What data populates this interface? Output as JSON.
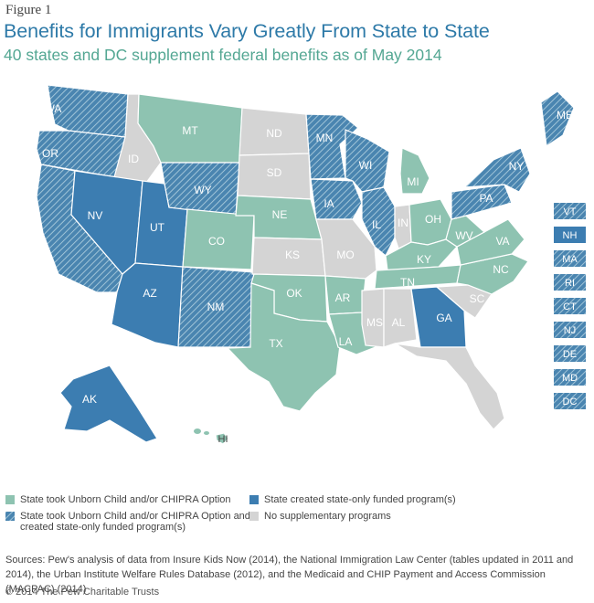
{
  "figure_label": "Figure 1",
  "title": "Benefits for Immigrants Vary Greatly From State to State",
  "subtitle": "40 states and DC supplement federal benefits as of May 2014",
  "colors": {
    "green": "#8ec3b1",
    "blue": "#3c7db1",
    "hatch_bg": "#4a85b0",
    "hatch_line": "#a9cbdc",
    "gray": "#d4d4d4",
    "title": "#2e7aa8",
    "subtitle": "#54a793"
  },
  "legend": [
    {
      "key": "green",
      "label": "State took Unborn Child and/or CHIPRA Option"
    },
    {
      "key": "hatch",
      "label": "State took Unborn Child and/or CHIPRA Option and created state-only funded program(s)"
    },
    {
      "key": "blue",
      "label": "State created state-only funded program(s)"
    },
    {
      "key": "gray",
      "label": "No supplementary programs"
    }
  ],
  "states": [
    {
      "abbr": "WA",
      "category": "hatch"
    },
    {
      "abbr": "OR",
      "category": "hatch"
    },
    {
      "abbr": "CA",
      "category": "hatch"
    },
    {
      "abbr": "ID",
      "category": "gray"
    },
    {
      "abbr": "NV",
      "category": "blue"
    },
    {
      "abbr": "UT",
      "category": "blue"
    },
    {
      "abbr": "AZ",
      "category": "blue"
    },
    {
      "abbr": "MT",
      "category": "green"
    },
    {
      "abbr": "WY",
      "category": "hatch"
    },
    {
      "abbr": "CO",
      "category": "green"
    },
    {
      "abbr": "NM",
      "category": "hatch"
    },
    {
      "abbr": "ND",
      "category": "gray"
    },
    {
      "abbr": "SD",
      "category": "gray"
    },
    {
      "abbr": "NE",
      "category": "green"
    },
    {
      "abbr": "KS",
      "category": "gray"
    },
    {
      "abbr": "OK",
      "category": "green"
    },
    {
      "abbr": "TX",
      "category": "green"
    },
    {
      "abbr": "MN",
      "category": "hatch"
    },
    {
      "abbr": "IA",
      "category": "hatch"
    },
    {
      "abbr": "MO",
      "category": "gray"
    },
    {
      "abbr": "AR",
      "category": "green"
    },
    {
      "abbr": "LA",
      "category": "green"
    },
    {
      "abbr": "WI",
      "category": "hatch"
    },
    {
      "abbr": "IL",
      "category": "hatch"
    },
    {
      "abbr": "MI",
      "category": "green"
    },
    {
      "abbr": "IN",
      "category": "gray"
    },
    {
      "abbr": "OH",
      "category": "green"
    },
    {
      "abbr": "KY",
      "category": "green"
    },
    {
      "abbr": "TN",
      "category": "green"
    },
    {
      "abbr": "MS",
      "category": "gray"
    },
    {
      "abbr": "AL",
      "category": "gray"
    },
    {
      "abbr": "GA",
      "category": "blue"
    },
    {
      "abbr": "FL",
      "category": "gray"
    },
    {
      "abbr": "SC",
      "category": "gray"
    },
    {
      "abbr": "NC",
      "category": "green"
    },
    {
      "abbr": "VA",
      "category": "green"
    },
    {
      "abbr": "WV",
      "category": "green"
    },
    {
      "abbr": "PA",
      "category": "hatch"
    },
    {
      "abbr": "NY",
      "category": "hatch"
    },
    {
      "abbr": "ME",
      "category": "hatch"
    },
    {
      "abbr": "AK",
      "category": "blue"
    },
    {
      "abbr": "HI",
      "category": "green"
    }
  ],
  "small_states": [
    {
      "abbr": "VT",
      "category": "hatch"
    },
    {
      "abbr": "NH",
      "category": "blue"
    },
    {
      "abbr": "MA",
      "category": "hatch"
    },
    {
      "abbr": "RI",
      "category": "hatch"
    },
    {
      "abbr": "CT",
      "category": "hatch"
    },
    {
      "abbr": "NJ",
      "category": "hatch"
    },
    {
      "abbr": "DE",
      "category": "hatch"
    },
    {
      "abbr": "MD",
      "category": "hatch"
    },
    {
      "abbr": "DC",
      "category": "hatch"
    }
  ],
  "sources": "Sources: Pew's analysis of data from Insure Kids Now (2014), the National Immigration Law Center (tables updated in 2011 and 2014), the Urban Institute Welfare Rules Database (2012), and the Medicaid and CHIP Payment and Access Commission (MACPAC) (2014)",
  "copyright": "© 2014 The Pew Charitable Trusts"
}
